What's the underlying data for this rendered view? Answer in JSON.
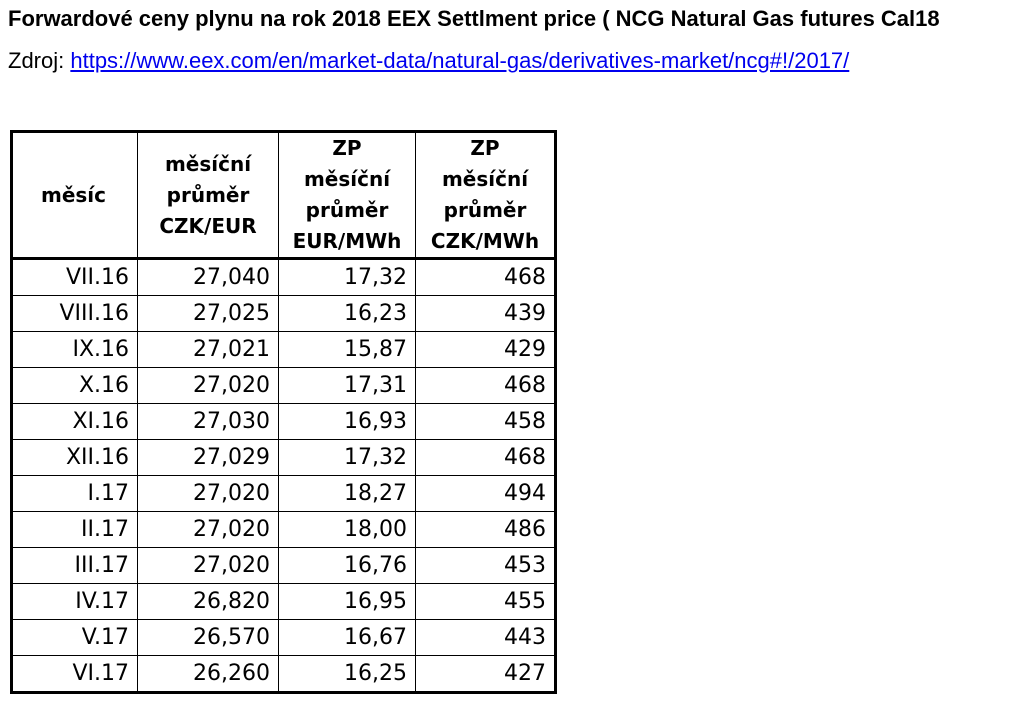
{
  "header": {
    "title": "Forwardové ceny plynu na rok 2018 EEX Settlment price ( NCG Natural Gas futures  Cal18",
    "source_label": "Zdroj: ",
    "source_link": "https://www.eex.com/en/market-data/natural-gas/derivatives-market/ncg#!/2017/"
  },
  "table": {
    "columns": [
      [
        "měsíc"
      ],
      [
        "měsíční",
        "průměr",
        "CZK/EUR"
      ],
      [
        "ZP měsíční",
        "průměr",
        "EUR/MWh"
      ],
      [
        "ZP měsíční",
        "průměr",
        "CZK/MWh"
      ]
    ],
    "rows": [
      [
        "VII.16",
        "27,040",
        "17,32",
        "468"
      ],
      [
        "VIII.16",
        "27,025",
        "16,23",
        "439"
      ],
      [
        "IX.16",
        "27,021",
        "15,87",
        "429"
      ],
      [
        "X.16",
        "27,020",
        "17,31",
        "468"
      ],
      [
        "XI.16",
        "27,030",
        "16,93",
        "458"
      ],
      [
        "XII.16",
        "27,029",
        "17,32",
        "468"
      ],
      [
        "I.17",
        "27,020",
        "18,27",
        "494"
      ],
      [
        "II.17",
        "27,020",
        "18,00",
        "486"
      ],
      [
        "III.17",
        "27,020",
        "16,76",
        "453"
      ],
      [
        "IV.17",
        "26,820",
        "16,95",
        "455"
      ],
      [
        "V.17",
        "26,570",
        "16,67",
        "443"
      ],
      [
        "VI.17",
        "26,260",
        "16,25",
        "427"
      ]
    ]
  }
}
